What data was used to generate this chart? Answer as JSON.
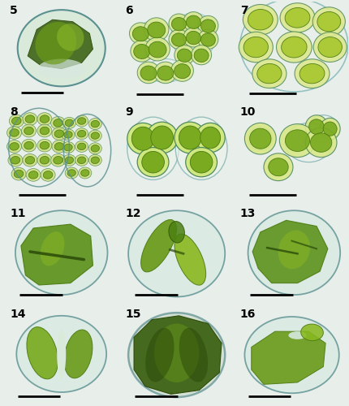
{
  "bg_color": "#e8eeea",
  "panel_bg": "#e8eeea",
  "label_fontsize": 10,
  "scale_bar_lw": 2.0,
  "cell_outline": "#6ab0b0",
  "cell_fill_pale": "#d0e8d0",
  "cell_fill_light": "#c0dcc0",
  "chloro_yellow_green": "#a8c830",
  "chloro_mid_green": "#7aaa20",
  "chloro_dark_green": "#4a7a10",
  "chloro_very_dark": "#2a4a08",
  "panels": [
    {
      "id": "5",
      "row": 0,
      "col": 0
    },
    {
      "id": "6",
      "row": 0,
      "col": 1
    },
    {
      "id": "7",
      "row": 0,
      "col": 2
    },
    {
      "id": "8",
      "row": 1,
      "col": 0
    },
    {
      "id": "9",
      "row": 1,
      "col": 1
    },
    {
      "id": "10",
      "row": 1,
      "col": 2
    },
    {
      "id": "11",
      "row": 2,
      "col": 0
    },
    {
      "id": "12",
      "row": 2,
      "col": 1
    },
    {
      "id": "13",
      "row": 2,
      "col": 2
    },
    {
      "id": "14",
      "row": 3,
      "col": 0
    },
    {
      "id": "15",
      "row": 3,
      "col": 1
    },
    {
      "id": "16",
      "row": 3,
      "col": 2
    }
  ]
}
